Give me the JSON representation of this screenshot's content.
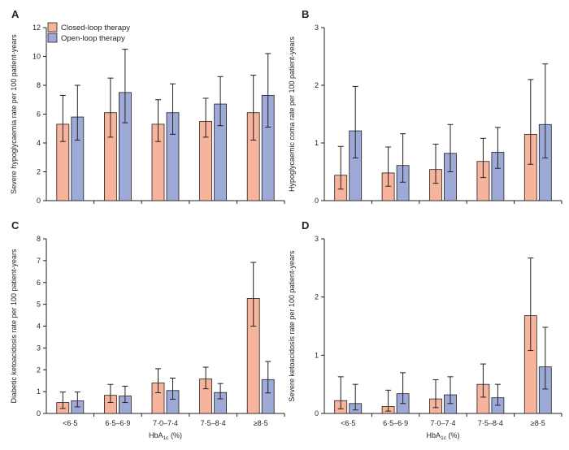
{
  "legend": {
    "closed_label": "Closed-loop therapy",
    "open_label": "Open-loop therapy"
  },
  "colors": {
    "closed": "#f7b49c",
    "open": "#9daad7",
    "outline": "#231f20"
  },
  "chart_data": [
    {
      "type": "bar",
      "panel": "A",
      "categories": [
        "<6·5",
        "6·5–6·9",
        "7·0–7·4",
        "7·5–8·4",
        "≥8·5"
      ],
      "xlabel": "",
      "ylabel": "Severe hypoglycaemia rate per 100 patient-years",
      "ylim": [
        0,
        12
      ],
      "yticks": [
        0,
        2,
        4,
        6,
        8,
        10,
        12
      ],
      "ytick_labels": [
        "0",
        "2",
        "4",
        "6",
        "8",
        "10",
        "12"
      ],
      "legend": "top-left",
      "series": [
        {
          "name": "Closed-loop therapy",
          "values": [
            5.3,
            6.1,
            5.3,
            5.5,
            6.1
          ],
          "err_low": [
            4.1,
            4.4,
            4.1,
            4.4,
            4.2
          ],
          "err_high": [
            7.3,
            8.5,
            7.0,
            7.1,
            8.7
          ]
        },
        {
          "name": "Open-loop therapy",
          "values": [
            5.8,
            7.5,
            6.1,
            6.7,
            7.3
          ],
          "err_low": [
            4.2,
            5.4,
            4.6,
            5.2,
            5.1
          ],
          "err_high": [
            8.0,
            10.5,
            8.1,
            8.6,
            10.2
          ]
        }
      ]
    },
    {
      "type": "bar",
      "panel": "B",
      "categories": [
        "<6·5",
        "6·5–6·9",
        "7·0–7·4",
        "7·5–8·4",
        "≥8·5"
      ],
      "xlabel": "",
      "ylabel": "Hypoglycaemic coma rate per 100 patient-years",
      "ylim": [
        0,
        3
      ],
      "yticks": [
        0,
        1,
        2,
        3
      ],
      "ytick_labels": [
        "0",
        "1",
        "2",
        "3"
      ],
      "series": [
        {
          "name": "Closed-loop therapy",
          "values": [
            0.44,
            0.48,
            0.54,
            0.68,
            1.15
          ],
          "err_low": [
            0.2,
            0.25,
            0.3,
            0.4,
            0.63
          ],
          "err_high": [
            0.94,
            0.93,
            0.98,
            1.08,
            2.1
          ]
        },
        {
          "name": "Open-loop therapy",
          "values": [
            1.21,
            0.61,
            0.82,
            0.84,
            1.32
          ],
          "err_low": [
            0.74,
            0.32,
            0.5,
            0.56,
            0.74
          ],
          "err_high": [
            1.98,
            1.16,
            1.32,
            1.27,
            2.37
          ]
        }
      ]
    },
    {
      "type": "bar",
      "panel": "C",
      "categories": [
        "<6·5",
        "6·5–6·9",
        "7·0–7·4",
        "7·5–8·4",
        "≥8·5"
      ],
      "xlabel_main": "HbA",
      "xlabel_sub": "1c",
      "xlabel_unit": " (%)",
      "ylabel": "Diabetic ketoacidosis rate per 100 patient-years",
      "ylim": [
        0,
        8
      ],
      "yticks": [
        0,
        1,
        2,
        3,
        4,
        5,
        6,
        7,
        8
      ],
      "ytick_labels": [
        "0",
        "1",
        "2",
        "3",
        "4",
        "5",
        "6",
        "7",
        "8"
      ],
      "series": [
        {
          "name": "Closed-loop therapy",
          "values": [
            0.5,
            0.83,
            1.4,
            1.58,
            5.27
          ],
          "err_low": [
            0.23,
            0.5,
            0.95,
            1.13,
            4.0
          ],
          "err_high": [
            0.98,
            1.33,
            2.05,
            2.12,
            6.92
          ]
        },
        {
          "name": "Open-loop therapy",
          "values": [
            0.58,
            0.8,
            1.05,
            0.96,
            1.55
          ],
          "err_low": [
            0.3,
            0.5,
            0.65,
            0.67,
            0.94
          ],
          "err_high": [
            0.98,
            1.25,
            1.62,
            1.37,
            2.38
          ]
        }
      ]
    },
    {
      "type": "bar",
      "panel": "D",
      "categories": [
        "<6·5",
        "6·5–6·9",
        "7·0–7·4",
        "7·5–8·4",
        "≥8·5"
      ],
      "xlabel_main": "HbA",
      "xlabel_sub": "1c",
      "xlabel_unit": " (%)",
      "ylabel": "Severe ketoacidosis rate per 100 patient-years",
      "ylim": [
        0,
        3
      ],
      "yticks": [
        0,
        1,
        2,
        3
      ],
      "ytick_labels": [
        "0",
        "1",
        "2",
        "3"
      ],
      "series": [
        {
          "name": "Closed-loop therapy",
          "values": [
            0.22,
            0.12,
            0.25,
            0.5,
            1.68
          ],
          "err_low": [
            0.08,
            0.04,
            0.1,
            0.28,
            1.08
          ],
          "err_high": [
            0.63,
            0.4,
            0.58,
            0.85,
            2.67
          ]
        },
        {
          "name": "Open-loop therapy",
          "values": [
            0.17,
            0.34,
            0.32,
            0.27,
            0.8
          ],
          "err_low": [
            0.06,
            0.17,
            0.17,
            0.14,
            0.42
          ],
          "err_high": [
            0.5,
            0.7,
            0.63,
            0.5,
            1.48
          ]
        }
      ]
    }
  ]
}
